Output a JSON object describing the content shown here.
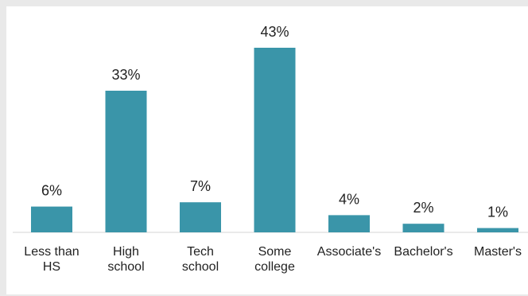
{
  "chart_data": {
    "type": "bar",
    "categories": [
      [
        "Less than",
        "HS"
      ],
      [
        "High",
        "school"
      ],
      [
        "Tech",
        "school"
      ],
      [
        "Some",
        "college"
      ],
      [
        "Associate's"
      ],
      [
        "Bachelor's"
      ],
      [
        "Master's"
      ]
    ],
    "values": [
      6,
      33,
      7,
      43,
      4,
      2,
      1
    ],
    "value_labels": [
      "6%",
      "33%",
      "7%",
      "43%",
      "4%",
      "2%",
      "1%"
    ],
    "unit": "%",
    "title": "",
    "xlabel": "",
    "ylabel": "",
    "ylim": [
      0,
      43
    ],
    "grid": false,
    "legend": "none",
    "bar_color": "#3a95a9",
    "baseline_color": "#d6d6d6"
  }
}
